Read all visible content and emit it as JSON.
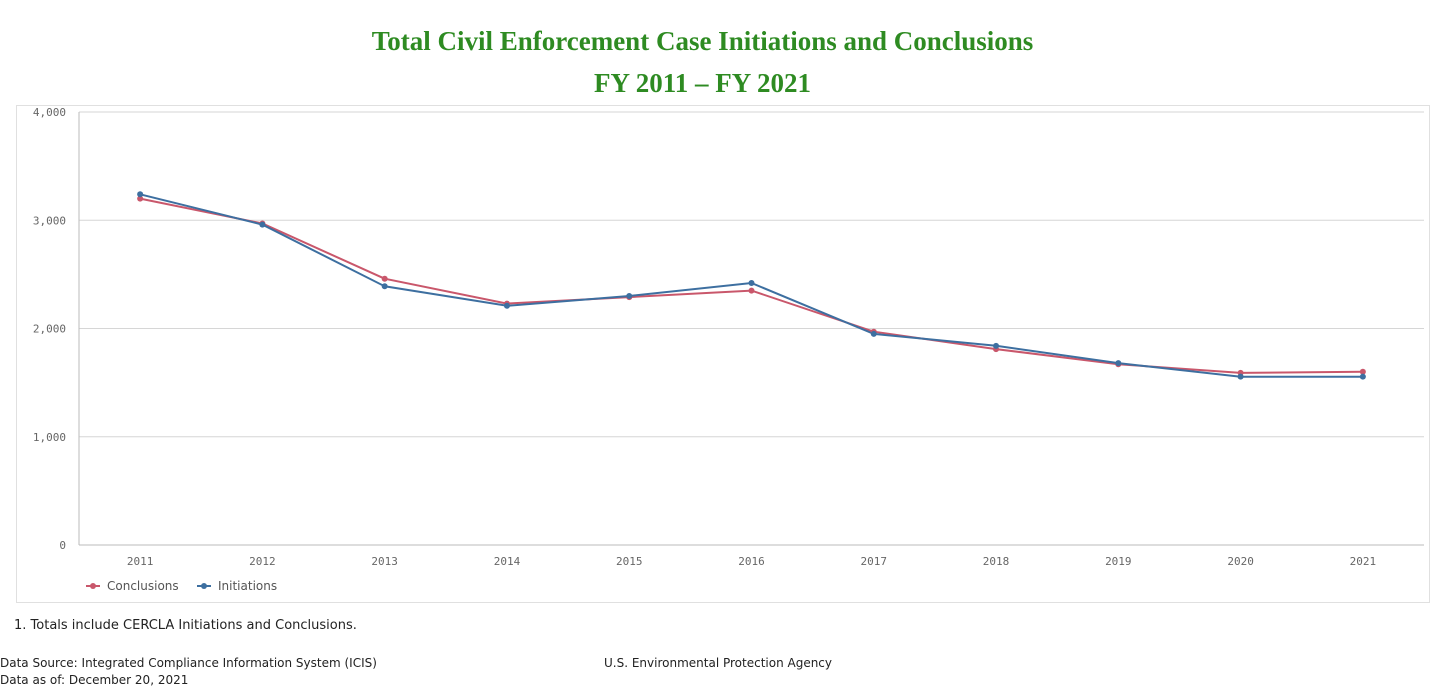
{
  "chart_data": {
    "type": "line",
    "title": "Total Civil Enforcement Case Initiations and Conclusions",
    "subtitle": "FY 2011 – FY 2021",
    "x": [
      "2011",
      "2012",
      "2013",
      "2014",
      "2015",
      "2016",
      "2017",
      "2018",
      "2019",
      "2020",
      "2021"
    ],
    "y_ticks": [
      "0",
      "1,000",
      "2,000",
      "3,000",
      "4,000"
    ],
    "ylim": [
      0,
      4000
    ],
    "grid": true,
    "legend_position": "bottom-left",
    "series": [
      {
        "name": "Conclusions",
        "color": "#c9576b",
        "values": [
          3200,
          2970,
          2460,
          2230,
          2290,
          2350,
          1970,
          1810,
          1670,
          1590,
          1600
        ]
      },
      {
        "name": "Initiations",
        "color": "#3d6fa0",
        "values": [
          3240,
          2960,
          2390,
          2210,
          2300,
          2420,
          1950,
          1840,
          1680,
          1555,
          1555
        ]
      }
    ]
  },
  "footnote": "1. Totals include CERCLA Initiations and Conclusions.",
  "footer": {
    "source": "Data Source: Integrated Compliance Information System (ICIS)",
    "as_of": "Data as of: December 20, 2021",
    "agency": "U.S. Environmental Protection Agency"
  }
}
